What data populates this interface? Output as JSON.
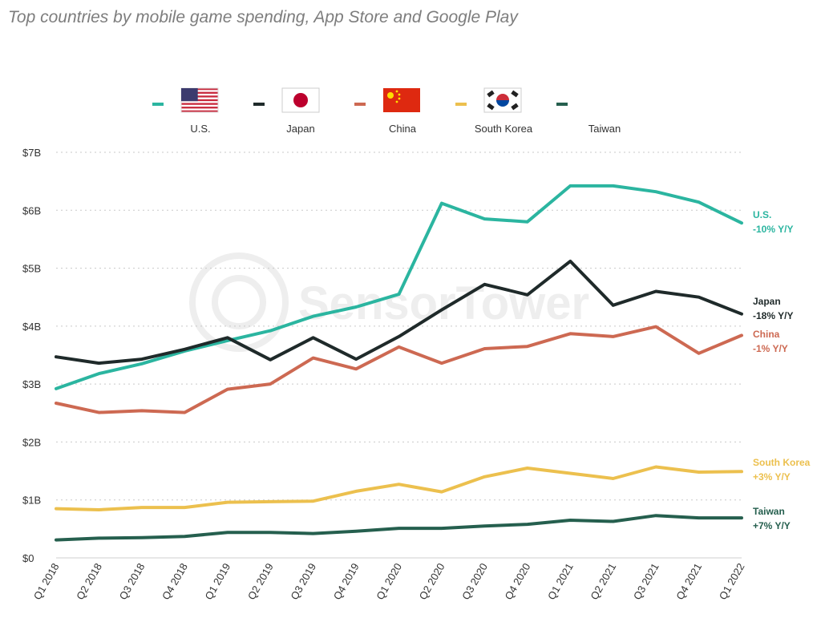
{
  "title": "Top countries by mobile game spending, App Store and Google Play",
  "watermark": "SensorTower",
  "chart_data": {
    "type": "line",
    "title": "Top countries by mobile game spending, App Store and Google Play",
    "xlabel": "",
    "ylabel": "",
    "ylim": [
      0,
      7
    ],
    "yticks": [
      {
        "value": 0,
        "label": "$0"
      },
      {
        "value": 1,
        "label": "$1B"
      },
      {
        "value": 2,
        "label": "$2B"
      },
      {
        "value": 3,
        "label": "$3B"
      },
      {
        "value": 4,
        "label": "$4B"
      },
      {
        "value": 5,
        "label": "$5B"
      },
      {
        "value": 6,
        "label": "$6B"
      },
      {
        "value": 7,
        "label": "$7B"
      }
    ],
    "categories": [
      "Q1 2018",
      "Q2 2018",
      "Q3 2018",
      "Q4 2018",
      "Q1 2019",
      "Q2 2019",
      "Q3 2019",
      "Q4 2019",
      "Q1 2020",
      "Q2 2020",
      "Q3 2020",
      "Q4 2020",
      "Q1 2021",
      "Q2 2021",
      "Q3 2021",
      "Q4 2021",
      "Q1 2022"
    ],
    "grid": "horizontal dotted",
    "series": [
      {
        "key": "us",
        "name": "U.S.",
        "change": "-10% Y/Y",
        "color": "#2bb5a0",
        "values": [
          2.92,
          3.18,
          3.35,
          3.57,
          3.75,
          3.92,
          4.17,
          4.33,
          4.55,
          6.12,
          5.85,
          5.8,
          6.42,
          6.42,
          6.32,
          6.14,
          5.78
        ]
      },
      {
        "key": "japan",
        "name": "Japan",
        "change": "-18% Y/Y",
        "color": "#1f2a2a",
        "values": [
          3.47,
          3.36,
          3.43,
          3.6,
          3.8,
          3.42,
          3.8,
          3.43,
          3.82,
          4.28,
          4.72,
          4.54,
          5.12,
          4.36,
          4.6,
          4.5,
          4.21
        ]
      },
      {
        "key": "china",
        "name": "China",
        "change": "-1% Y/Y",
        "color": "#cd6952",
        "values": [
          2.67,
          2.51,
          2.54,
          2.51,
          2.91,
          3.0,
          3.45,
          3.26,
          3.64,
          3.36,
          3.61,
          3.65,
          3.87,
          3.82,
          3.99,
          3.53,
          3.84
        ]
      },
      {
        "key": "south_korea",
        "name": "South Korea",
        "change": "+3% Y/Y",
        "color": "#ecc04e",
        "values": [
          0.85,
          0.83,
          0.87,
          0.87,
          0.96,
          0.97,
          0.98,
          1.15,
          1.27,
          1.14,
          1.4,
          1.55,
          1.46,
          1.37,
          1.57,
          1.48,
          1.49
        ]
      },
      {
        "key": "taiwan",
        "name": "Taiwan",
        "change": "+7% Y/Y",
        "color": "#255f4e",
        "values": [
          0.31,
          0.34,
          0.35,
          0.37,
          0.44,
          0.44,
          0.42,
          0.46,
          0.51,
          0.51,
          0.55,
          0.58,
          0.65,
          0.63,
          0.73,
          0.69,
          0.69
        ]
      }
    ],
    "legend": {
      "placement": "top-center",
      "items": [
        {
          "label": "U.S.",
          "color": "#2bb5a0",
          "flag": "us-flag-icon"
        },
        {
          "label": "Japan",
          "color": "#1f2a2a",
          "flag": "japan-flag-icon"
        },
        {
          "label": "China",
          "color": "#cd6952",
          "flag": "china-flag-icon"
        },
        {
          "label": "South Korea",
          "color": "#ecc04e",
          "flag": "south-korea-flag-icon"
        },
        {
          "label": "Taiwan",
          "color": "#255f4e",
          "flag": ""
        }
      ]
    }
  }
}
